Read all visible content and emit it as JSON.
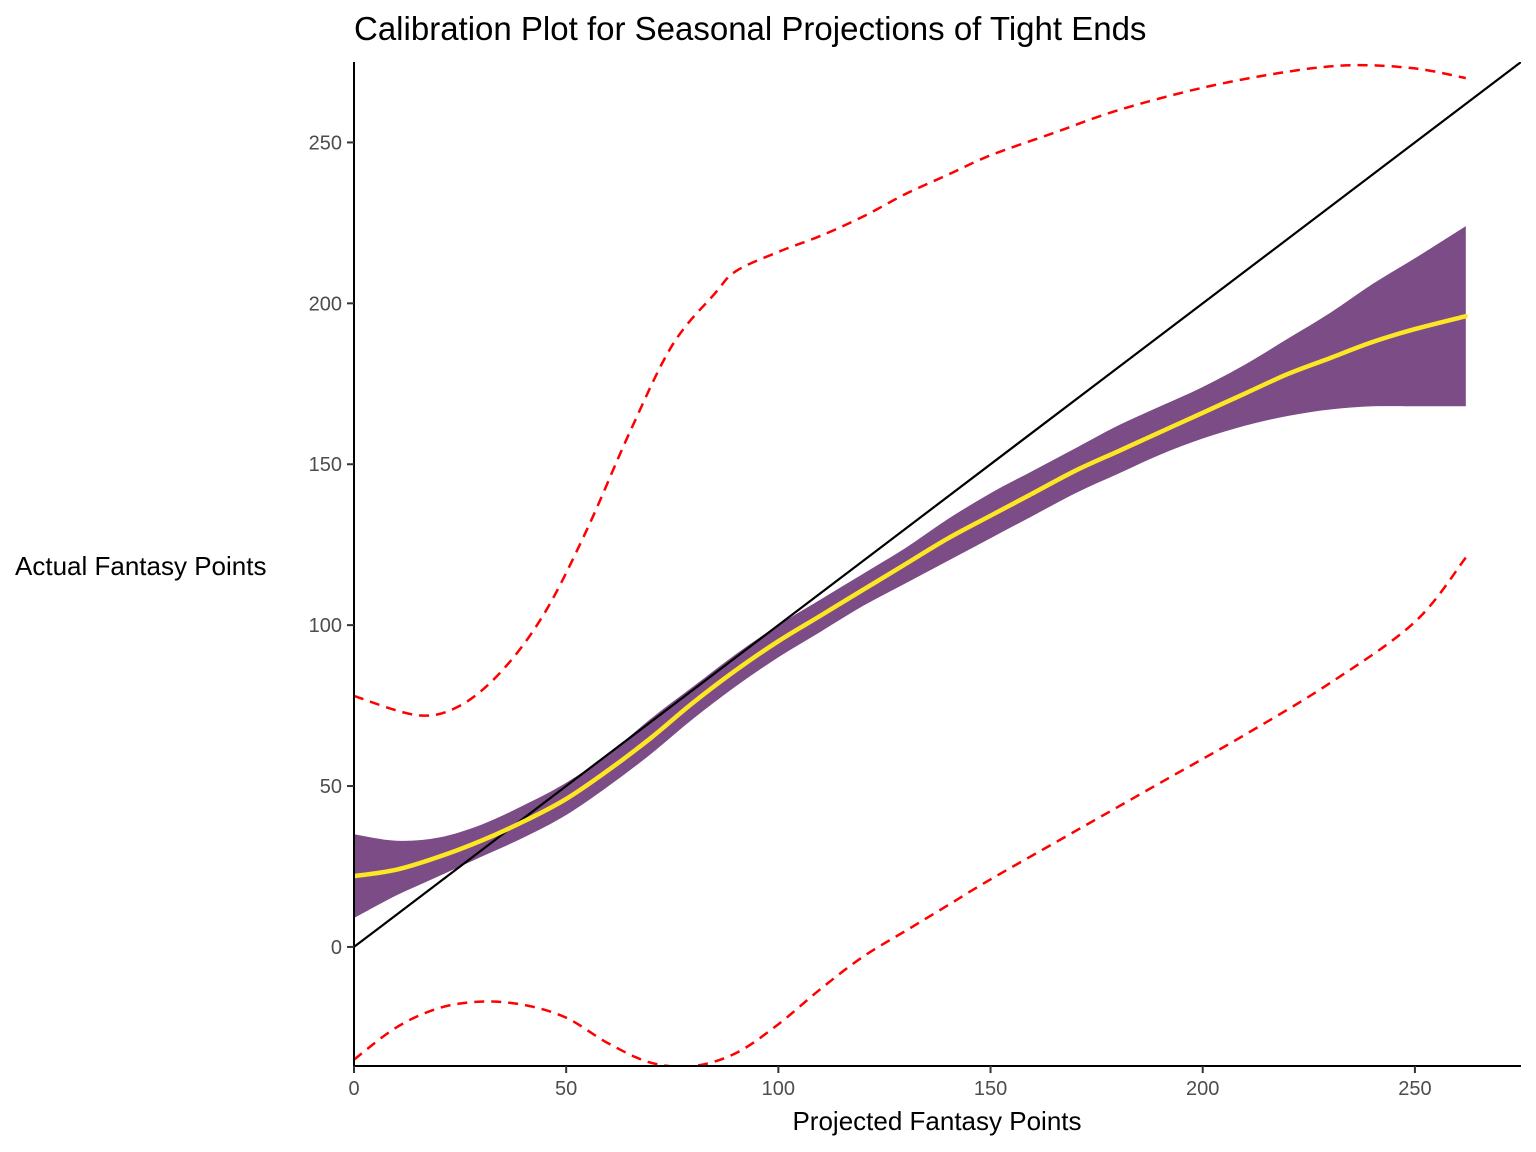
{
  "chart_data": {
    "type": "line",
    "title": "Calibration Plot for Seasonal Projections of Tight Ends",
    "xlabel": "Projected Fantasy Points",
    "ylabel": "Actual Fantasy Points",
    "xlim": [
      0,
      275
    ],
    "ylim": [
      -37,
      275
    ],
    "x_ticks": [
      0,
      50,
      100,
      150,
      200,
      250
    ],
    "y_ticks": [
      0,
      50,
      100,
      150,
      200,
      250
    ],
    "grid": false,
    "legend": "none",
    "reference_line": {
      "name": "",
      "slope": 1,
      "intercept": 0,
      "color": "#000000"
    },
    "series": [
      {
        "name": "",
        "kind": "smooth",
        "color": "#FDE725",
        "x": [
          0,
          10,
          20,
          30,
          40,
          50,
          60,
          70,
          80,
          90,
          100,
          110,
          120,
          130,
          140,
          150,
          160,
          170,
          180,
          190,
          200,
          210,
          220,
          230,
          240,
          250,
          262
        ],
        "y": [
          22,
          24,
          28,
          33,
          39,
          46,
          55,
          65,
          76,
          86,
          95,
          103,
          111,
          119,
          127,
          134,
          141,
          148,
          154,
          160,
          166,
          172,
          178,
          183,
          188,
          192,
          196
        ]
      },
      {
        "name": "",
        "kind": "confidence-band",
        "color": "#7B4C86",
        "x": [
          0,
          10,
          20,
          30,
          40,
          50,
          60,
          70,
          80,
          90,
          100,
          110,
          120,
          130,
          140,
          150,
          160,
          170,
          180,
          190,
          200,
          210,
          220,
          230,
          240,
          250,
          262
        ],
        "lower": [
          9,
          16,
          22,
          28,
          34,
          41,
          50,
          60,
          71,
          81,
          90,
          98,
          106,
          113,
          120,
          127,
          134,
          141,
          147,
          153,
          158,
          162,
          165,
          167,
          168,
          168,
          168
        ],
        "upper": [
          35,
          33,
          34,
          38,
          44,
          51,
          60,
          71,
          81,
          91,
          100,
          108,
          116,
          124,
          133,
          141,
          148,
          155,
          162,
          168,
          174,
          181,
          189,
          197,
          206,
          214,
          224
        ]
      },
      {
        "name": "",
        "kind": "dashed-bound",
        "color": "#FF0000",
        "x": [
          0,
          15,
          25,
          35,
          45,
          55,
          65,
          75,
          85,
          90,
          100,
          110,
          120,
          130,
          140,
          150,
          165,
          180,
          200,
          220,
          235,
          250,
          262
        ],
        "y": [
          78,
          72,
          75,
          86,
          104,
          130,
          160,
          187,
          203,
          210,
          216,
          221,
          227,
          234,
          240,
          246,
          253,
          260,
          267,
          272,
          274,
          273,
          270
        ]
      },
      {
        "name": "",
        "kind": "dashed-bound",
        "color": "#FF0000",
        "x": [
          0,
          10,
          20,
          30,
          40,
          50,
          60,
          70,
          80,
          90,
          100,
          110,
          120,
          130,
          140,
          150,
          170,
          190,
          210,
          230,
          250,
          262
        ],
        "y": [
          -35,
          -25,
          -19,
          -17,
          -18,
          -22,
          -30,
          -36,
          -37,
          -33,
          -24,
          -13,
          -3,
          5,
          13,
          21,
          36,
          51,
          66,
          82,
          101,
          121
        ]
      }
    ]
  }
}
